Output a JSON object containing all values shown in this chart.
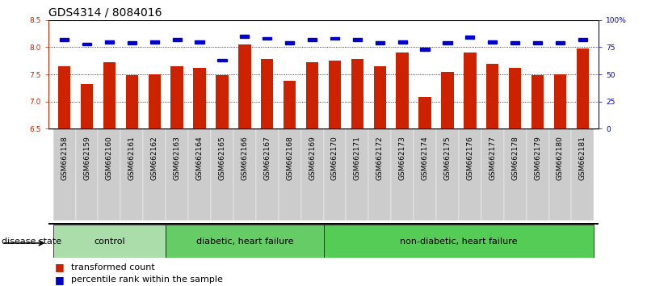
{
  "title": "GDS4314 / 8084016",
  "samples": [
    "GSM662158",
    "GSM662159",
    "GSM662160",
    "GSM662161",
    "GSM662162",
    "GSM662163",
    "GSM662164",
    "GSM662165",
    "GSM662166",
    "GSM662167",
    "GSM662168",
    "GSM662169",
    "GSM662170",
    "GSM662171",
    "GSM662172",
    "GSM662173",
    "GSM662174",
    "GSM662175",
    "GSM662176",
    "GSM662177",
    "GSM662178",
    "GSM662179",
    "GSM662180",
    "GSM662181"
  ],
  "red_values": [
    7.65,
    7.32,
    7.72,
    7.48,
    7.5,
    7.65,
    7.62,
    7.48,
    8.05,
    7.78,
    7.38,
    7.72,
    7.75,
    7.78,
    7.65,
    7.9,
    7.08,
    7.55,
    7.9,
    7.7,
    7.62,
    7.48,
    7.5,
    7.98
  ],
  "blue_values": [
    82,
    78,
    80,
    79,
    80,
    82,
    80,
    63,
    85,
    83,
    79,
    82,
    83,
    82,
    79,
    80,
    73,
    79,
    84,
    80,
    79,
    79,
    79,
    82
  ],
  "groups": [
    {
      "label": "control",
      "start": 0,
      "end": 5,
      "color": "#aaddaa"
    },
    {
      "label": "diabetic, heart failure",
      "start": 5,
      "end": 12,
      "color": "#66cc66"
    },
    {
      "label": "non-diabetic, heart failure",
      "start": 12,
      "end": 24,
      "color": "#55cc55"
    }
  ],
  "ylim_left": [
    6.5,
    8.5
  ],
  "ylim_right": [
    0,
    100
  ],
  "yticks_left": [
    6.5,
    7.0,
    7.5,
    8.0,
    8.5
  ],
  "yticks_right": [
    0,
    25,
    50,
    75,
    100
  ],
  "ytick_labels_right": [
    "0",
    "25",
    "50",
    "75",
    "100%"
  ],
  "grid_lines": [
    7.0,
    7.5,
    8.0
  ],
  "bar_color": "#cc2200",
  "dot_color": "#0000cc",
  "tick_bg_color": "#cccccc",
  "tick_fontsize": 6.5,
  "legend_fontsize": 8,
  "disease_state_fontsize": 8,
  "title_fontsize": 10
}
